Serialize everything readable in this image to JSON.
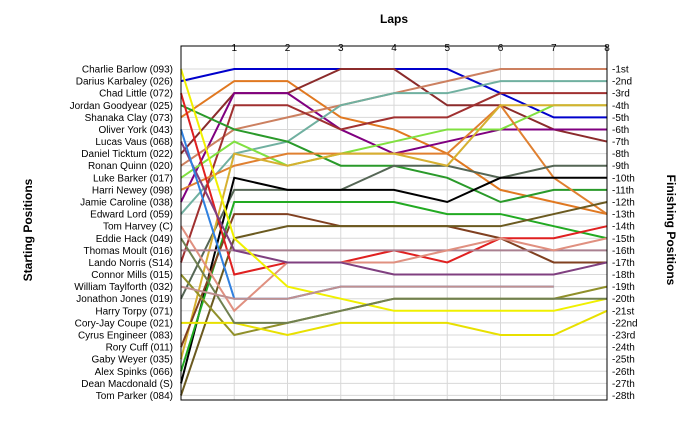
{
  "chart_data": {
    "type": "line",
    "xlabel": "Laps",
    "ylabel_left": "Starting Positions",
    "ylabel_right": "Finishing Positions",
    "x_ticks": [
      "1",
      "2",
      "3",
      "4",
      "5",
      "6",
      "7",
      "8"
    ],
    "xlim": [
      0,
      8
    ],
    "ylim": [
      1,
      28
    ],
    "y_inverted": true,
    "grid": true,
    "starting_labels": [
      "Charlie Barlow (093)",
      "Darius Karbaley (026)",
      "Chad Little (072)",
      "Jordan Goodyear (025)",
      "Shanaka Clay (073)",
      "Oliver York (043)",
      "Lucas Vaus (068)",
      "Daniel Ticktum (022)",
      "Ronan Quinn (020)",
      "Luke Barker (017)",
      "Harri Newey (098)",
      "Jamie Caroline (038)",
      "Edward Lord (059)",
      "Tom Harvey (C)",
      "Eddie Hack (049)",
      "Thomas Moult (016)",
      "Lando Norris (S14)",
      "Connor Mills (015)",
      "William Taylforth (032)",
      "Jonathon Jones (019)",
      "Harry Torpy (071)",
      "Cory-Jay Coupe (021)",
      "Cyrus Engineer (083)",
      "Rory Cuff (011)",
      "Gaby Weyer (035)",
      "Alex Spinks (066)",
      "Dean Macdonald (S)",
      "Tom Parker (084)"
    ],
    "finishing_labels": [
      "1st",
      "2nd",
      "3rd",
      "4th",
      "5th",
      "6th",
      "7th",
      "8th",
      "9th",
      "10th",
      "11th",
      "12th",
      "13th",
      "14th",
      "15th",
      "16th",
      "17th",
      "18th",
      "19th",
      "20th",
      "21st",
      "22nd",
      "23rd",
      "24th",
      "25th",
      "26th",
      "27th",
      "28th"
    ],
    "series": [
      {
        "color": "#0000cc",
        "values": [
          2,
          1,
          1,
          1,
          1,
          1,
          3,
          5,
          5
        ]
      },
      {
        "color": "#e07820",
        "values": [
          5,
          2,
          2,
          5,
          6,
          8,
          11,
          12,
          13
        ]
      },
      {
        "color": "#8b2b2b",
        "values": [
          8,
          3,
          3,
          1,
          1,
          4,
          4,
          6,
          7
        ]
      },
      {
        "color": "#800080",
        "values": [
          12,
          3,
          3,
          6,
          8,
          7,
          6,
          6,
          6
        ]
      },
      {
        "color": "#cc8060",
        "values": [
          9,
          6,
          5,
          4,
          3,
          2,
          1,
          1,
          1
        ]
      },
      {
        "color": "#70b0a0",
        "values": [
          13,
          8,
          7,
          4,
          3,
          3,
          2,
          2,
          2
        ]
      },
      {
        "color": "#a03030",
        "values": [
          17,
          4,
          4,
          6,
          5,
          5,
          3,
          3,
          3
        ]
      },
      {
        "color": "#2a9a2a",
        "values": [
          4,
          6,
          7,
          9,
          9,
          10,
          12,
          11,
          11
        ]
      },
      {
        "color": "#80e040",
        "values": [
          10,
          7,
          9,
          8,
          7,
          6,
          6,
          4,
          4
        ]
      },
      {
        "color": "#e08030",
        "values": [
          11,
          9,
          8,
          8,
          8,
          8,
          4,
          10,
          13
        ]
      },
      {
        "color": "#556655",
        "values": [
          20,
          11,
          11,
          11,
          9,
          9,
          10,
          9,
          9
        ]
      },
      {
        "color": "#000000",
        "values": [
          27,
          10,
          11,
          11,
          11,
          12,
          10,
          10,
          10
        ]
      },
      {
        "color": "#d6b030",
        "values": [
          25,
          8,
          9,
          8,
          8,
          9,
          4,
          4,
          4
        ]
      },
      {
        "color": "#22aa22",
        "values": [
          26,
          12,
          12,
          12,
          12,
          13,
          13,
          14,
          15
        ]
      },
      {
        "color": "#804020",
        "values": [
          24,
          13,
          13,
          14,
          14,
          14,
          15,
          17,
          17
        ]
      },
      {
        "color": "#6b5a20",
        "values": [
          28,
          15,
          14,
          14,
          14,
          14,
          14,
          13,
          12
        ]
      },
      {
        "color": "#e02020",
        "values": [
          3,
          18,
          17,
          17,
          16,
          17,
          15,
          15,
          14
        ]
      },
      {
        "color": "#aa8090",
        "values": [
          16,
          16,
          16,
          16,
          16,
          16,
          16,
          16,
          16
        ]
      },
      {
        "color": "#e09080",
        "values": [
          14,
          21,
          17,
          17,
          17,
          16,
          15,
          16,
          15
        ]
      },
      {
        "color": "#804080",
        "values": [
          7,
          16,
          17,
          17,
          18,
          18,
          18,
          18,
          17
        ]
      },
      {
        "color": "#3080e0",
        "values": [
          6,
          20,
          20,
          19,
          19,
          19,
          19,
          19
        ]
      },
      {
        "color": "#f0f000",
        "values": [
          1,
          15,
          19,
          20,
          21,
          21,
          21,
          21,
          20
        ]
      },
      {
        "color": "#90902a",
        "values": [
          18,
          23,
          22,
          21,
          20,
          20,
          20,
          20,
          19
        ]
      },
      {
        "color": "#e8e000",
        "values": [
          22,
          22,
          23,
          22,
          22,
          22,
          23,
          23,
          21
        ]
      },
      {
        "color": "#708050",
        "values": [
          15,
          22,
          22,
          21,
          20,
          20,
          20,
          20,
          20
        ]
      },
      {
        "color": "#c09090",
        "values": [
          19,
          20,
          20,
          19,
          19,
          19,
          19,
          19
        ]
      }
    ]
  }
}
